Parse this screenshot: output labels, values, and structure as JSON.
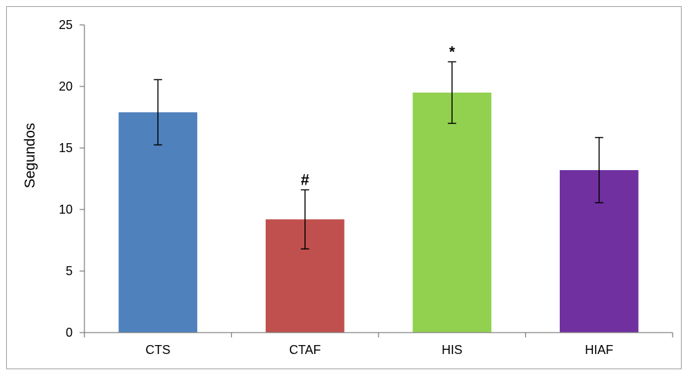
{
  "chart_data": {
    "type": "bar",
    "title": "",
    "xlabel": "",
    "ylabel": "Segundos",
    "ylim": [
      0,
      25
    ],
    "yticks": [
      0,
      5,
      10,
      15,
      20,
      25
    ],
    "grid": false,
    "legend": "none",
    "categories": [
      "CTS",
      "CTAF",
      "HIS",
      "HIAF"
    ],
    "values": [
      17.9,
      9.2,
      19.5,
      13.2
    ],
    "errors": [
      2.65,
      2.4,
      2.5,
      2.65
    ],
    "annotations": [
      "",
      "#",
      "*",
      ""
    ],
    "colors": [
      "#4F81BD",
      "#C0504D",
      "#92D050",
      "#7030A0"
    ]
  }
}
